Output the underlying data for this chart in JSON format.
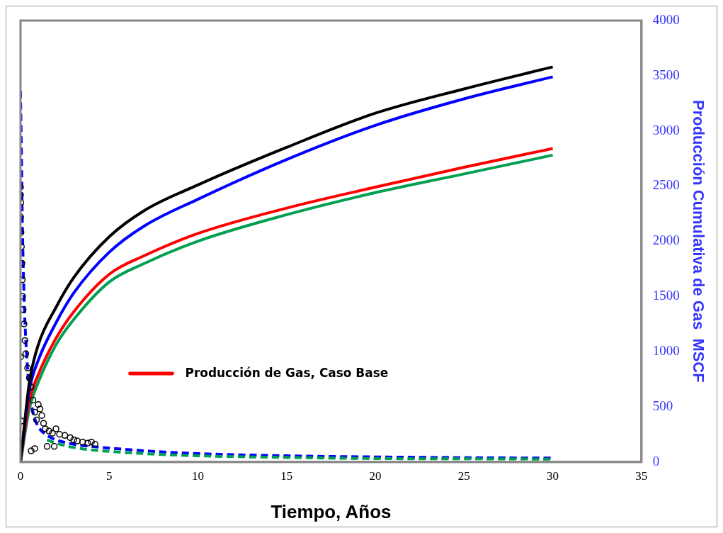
{
  "chart_data": {
    "type": "line",
    "xlabel": "Tiempo, Años",
    "y2label": "Producción Cumulativa de Gas  MSCF",
    "xlim": [
      0,
      35
    ],
    "xticks": [
      0,
      5,
      10,
      15,
      20,
      25,
      30,
      35
    ],
    "y2lim": [
      0,
      4000
    ],
    "y2ticks": [
      0,
      500,
      1000,
      1500,
      2000,
      2500,
      3000,
      3500,
      4000
    ],
    "grid": false,
    "legend": "left",
    "series": [
      {
        "axis": "y2",
        "color": "#000000",
        "line_style": "solid",
        "marker": "none",
        "x": [
          0,
          0.5,
          1,
          2,
          3,
          5,
          7,
          10,
          15,
          20,
          25,
          30
        ],
        "values": [
          0,
          720,
          1060,
          1400,
          1670,
          2040,
          2280,
          2510,
          2850,
          3160,
          3380,
          3580
        ]
      },
      {
        "axis": "y2",
        "color": "#0000ff",
        "line_style": "solid",
        "marker": "none",
        "x": [
          0,
          0.5,
          1,
          2,
          3,
          5,
          7,
          10,
          15,
          20,
          25,
          30
        ],
        "values": [
          0,
          650,
          920,
          1260,
          1530,
          1900,
          2140,
          2380,
          2740,
          3050,
          3290,
          3490
        ]
      },
      {
        "axis": "y2",
        "name": "Producción de Gas, Caso Base",
        "color": "#ff0000",
        "line_style": "solid",
        "marker": "none",
        "x": [
          0,
          0.5,
          1,
          2,
          3,
          5,
          7,
          10,
          15,
          20,
          25,
          30
        ],
        "values": [
          0,
          550,
          790,
          1120,
          1360,
          1700,
          1870,
          2070,
          2300,
          2490,
          2670,
          2840
        ]
      },
      {
        "type": "line",
        "axis": "y2",
        "color": "#00a050",
        "line_style": "solid",
        "marker": "none",
        "x": [
          0,
          0.5,
          1,
          2,
          3,
          5,
          7,
          10,
          15,
          20,
          25,
          30
        ],
        "values": [
          0,
          480,
          720,
          1060,
          1290,
          1630,
          1800,
          2000,
          2240,
          2440,
          2610,
          2780
        ]
      },
      {
        "type": "line",
        "axis": "y2",
        "color": "#00a050",
        "line_style": "dashed",
        "marker": "none",
        "x": [
          1.5,
          2,
          3,
          5,
          7,
          10,
          15,
          20,
          25,
          30
        ],
        "values": [
          200,
          170,
          130,
          95,
          75,
          55,
          40,
          30,
          28,
          25
        ]
      },
      {
        "type": "line",
        "axis": "y2",
        "color": "#0000ff",
        "line_style": "dashed",
        "marker": "none",
        "x": [
          0,
          0.05,
          0.1,
          0.2,
          0.3,
          0.5,
          0.75,
          1,
          1.5,
          2,
          3,
          4,
          5,
          7,
          10,
          15,
          20,
          25,
          30
        ],
        "values": [
          3360,
          2800,
          2200,
          1500,
          1100,
          650,
          420,
          320,
          240,
          200,
          160,
          140,
          125,
          100,
          75,
          55,
          45,
          38,
          34
        ]
      },
      {
        "type": "scatter",
        "axis": "y2",
        "color": "#000000",
        "marker": "circle",
        "x": [
          0,
          0,
          0.02,
          0,
          0.03,
          0.05,
          0.08,
          0.1,
          0.12,
          0.15,
          0.2,
          0.25,
          0.3,
          0.4,
          0.5,
          0.6,
          0,
          0.05,
          0.7,
          0.8,
          0.9,
          1,
          1.1,
          1.2,
          1.3,
          1.4,
          1.6,
          1.8,
          2,
          2.2,
          2.5,
          2.8,
          3,
          3.2,
          3.5,
          3.8,
          4,
          4.2,
          1.5,
          0.8,
          0.6,
          1.9
        ],
        "values": [
          2490,
          2420,
          2350,
          2220,
          2080,
          1950,
          1800,
          1650,
          1500,
          1380,
          1250,
          1100,
          980,
          850,
          760,
          680,
          950,
          370,
          560,
          450,
          380,
          520,
          480,
          420,
          350,
          300,
          280,
          260,
          300,
          250,
          240,
          220,
          200,
          190,
          180,
          170,
          180,
          160,
          140,
          120,
          100,
          140
        ]
      }
    ]
  }
}
